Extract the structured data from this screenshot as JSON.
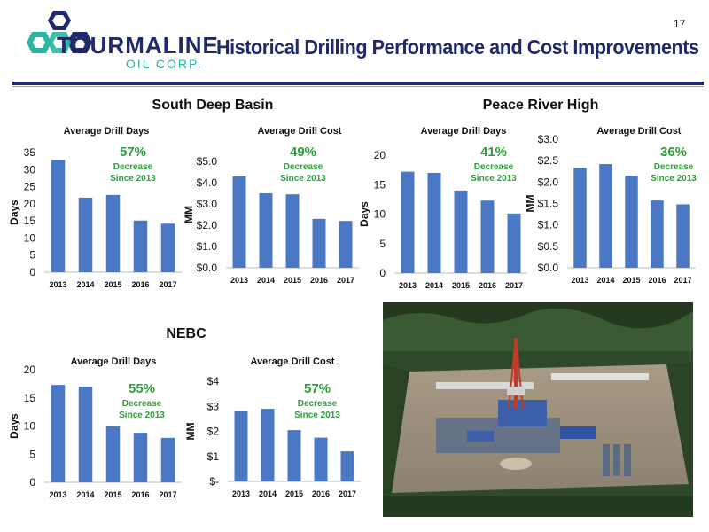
{
  "page_number": "17",
  "title": "Historical Drilling Performance and Cost Improvements",
  "logo": {
    "word": "TOURMALINE",
    "sub": "OIL CORP."
  },
  "colors": {
    "bar": "#4a78c4",
    "accent_green": "#2e9e3a",
    "navy": "#1f2a6b"
  },
  "regions": [
    {
      "title": "South Deep Basin"
    },
    {
      "title": "Peace River High"
    },
    {
      "title": "NEBC"
    }
  ],
  "chart_data": [
    {
      "type": "bar",
      "region": "South Deep Basin",
      "title": "Average Drill Days",
      "ylabel": "Days",
      "categories": [
        "2013",
        "2014",
        "2015",
        "2016",
        "2017"
      ],
      "values": [
        32.8,
        21.8,
        22.6,
        15.1,
        14.2
      ],
      "ylim": [
        0,
        35
      ],
      "ticks": [
        "0",
        "5",
        "10",
        "15",
        "20",
        "25",
        "30",
        "35"
      ],
      "annotation": {
        "pct": "57%",
        "line1": "Decrease",
        "line2": "Since 2013"
      }
    },
    {
      "type": "bar",
      "region": "South Deep Basin",
      "title": "Average Drill Cost",
      "ylabel": "MM",
      "categories": [
        "2013",
        "2014",
        "2015",
        "2016",
        "2017"
      ],
      "values": [
        4.3,
        3.5,
        3.45,
        2.3,
        2.2
      ],
      "ylim": [
        0,
        5
      ],
      "ticks": [
        "$0.0",
        "$1.0",
        "$2.0",
        "$3.0",
        "$4.0",
        "$5.0"
      ],
      "annotation": {
        "pct": "49%",
        "line1": "Decrease",
        "line2": "Since 2013"
      }
    },
    {
      "type": "bar",
      "region": "Peace River High",
      "title": "Average Drill Days",
      "ylabel": "Days",
      "categories": [
        "2013",
        "2014",
        "2015",
        "2016",
        "2017"
      ],
      "values": [
        17.2,
        17.0,
        14.0,
        12.3,
        10.1
      ],
      "ylim": [
        0,
        20
      ],
      "ticks": [
        "0",
        "5",
        "10",
        "15",
        "20"
      ],
      "annotation": {
        "pct": "41%",
        "line1": "Decrease",
        "line2": "Since 2013"
      }
    },
    {
      "type": "bar",
      "region": "Peace River High",
      "title": "Average Drill Cost",
      "ylabel": "MM",
      "categories": [
        "2013",
        "2014",
        "2015",
        "2016",
        "2017"
      ],
      "values": [
        2.33,
        2.42,
        2.15,
        1.57,
        1.48
      ],
      "ylim": [
        0,
        3
      ],
      "ticks": [
        "$0.0",
        "$0.5",
        "$1.0",
        "$1.5",
        "$2.0",
        "$2.5",
        "$3.0"
      ],
      "annotation": {
        "pct": "36%",
        "line1": "Decrease",
        "line2": "Since 2013"
      }
    },
    {
      "type": "bar",
      "region": "NEBC",
      "title": "Average Drill Days",
      "ylabel": "Days",
      "categories": [
        "2013",
        "2014",
        "2015",
        "2016",
        "2017"
      ],
      "values": [
        17.3,
        17.0,
        10.0,
        8.8,
        7.9
      ],
      "ylim": [
        0,
        20
      ],
      "ticks": [
        "0",
        "5",
        "10",
        "15",
        "20"
      ],
      "annotation": {
        "pct": "55%",
        "line1": "Decrease",
        "line2": "Since 2013"
      }
    },
    {
      "type": "bar",
      "region": "NEBC",
      "title": "Average Drill Cost",
      "ylabel": "MM",
      "categories": [
        "2013",
        "2014",
        "2015",
        "2016",
        "2017"
      ],
      "values": [
        2.8,
        2.9,
        2.05,
        1.75,
        1.2
      ],
      "ylim": [
        0,
        4
      ],
      "ticks": [
        "$-",
        "$1",
        "$2",
        "$3",
        "$4"
      ],
      "annotation": {
        "pct": "57%",
        "line1": "Decrease",
        "line2": "Since 2013"
      }
    }
  ]
}
